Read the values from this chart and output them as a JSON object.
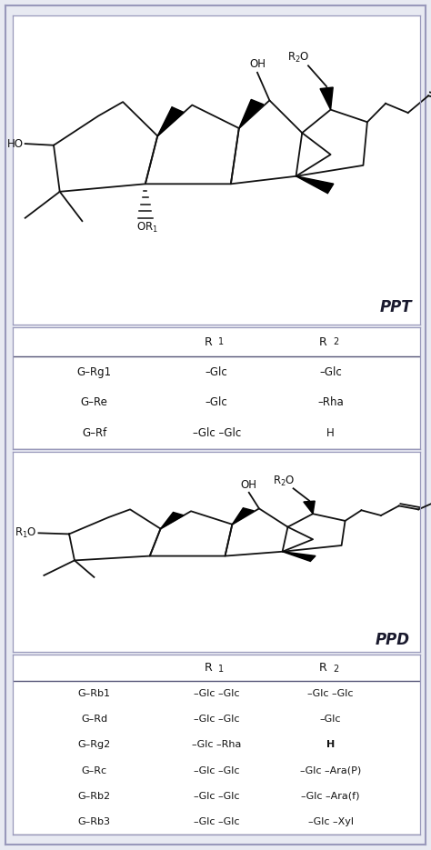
{
  "bg_color": "#e8eaf2",
  "panel_bg": "#ffffff",
  "border_color": "#8888aa",
  "title_ppt": "PPT",
  "title_ppd": "PPD",
  "ppt_table": {
    "header_r1": "R 1",
    "header_r2": "R 2",
    "rows": [
      [
        "G–Rg1",
        "–Glc",
        "–Glc"
      ],
      [
        "G–Re",
        "–Glc",
        "–Rha"
      ],
      [
        "G–Rf",
        "–Glc –Glc",
        "H"
      ]
    ]
  },
  "ppd_table": {
    "header_r1": "R 1",
    "header_r2": "R 2",
    "rows": [
      [
        "G–Rb1",
        "–Glc –Glc",
        "–Glc –Glc"
      ],
      [
        "G–Rd",
        "–Glc –Glc",
        "–Glc"
      ],
      [
        "G–Rg2",
        "–Glc –Rha",
        "H"
      ],
      [
        "G–Rc",
        "–Glc –Glc",
        "–Glc –Ara(P)"
      ],
      [
        "G–Rb2",
        "–Glc –Glc",
        "–Glc –Ara(f)"
      ],
      [
        "G–Rb3",
        "–Glc –Glc",
        "–Glc –Xyl"
      ]
    ]
  },
  "text_color": "#111111",
  "lc": "#111111",
  "lw": 1.3
}
